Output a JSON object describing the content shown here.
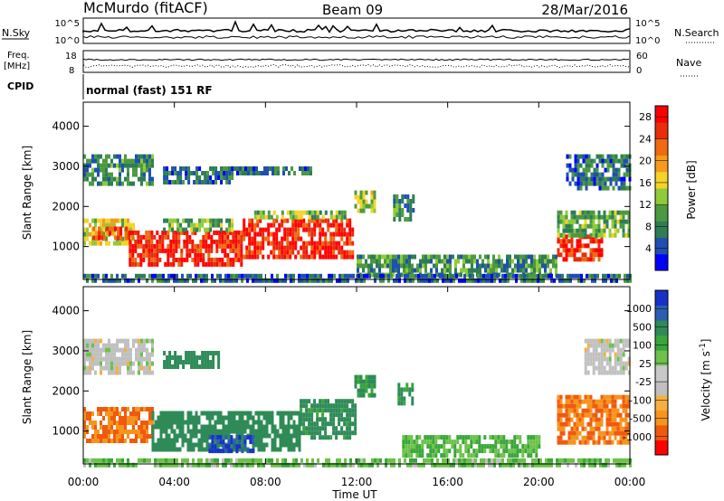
{
  "header": {
    "station": "McMurdo (fitACF)",
    "beam": "Beam 09",
    "date": "28/Mar/2016"
  },
  "noise_panel": {
    "left_label": "N.Sky",
    "right_label": "N.Search",
    "left_ticks": [
      "10^5",
      "10^0"
    ],
    "right_ticks": [
      "10^5",
      "10^0"
    ]
  },
  "freq_panel": {
    "left_label_1": "Freq.",
    "left_label_2": "[MHz]",
    "right_label": "Nave",
    "left_ticks": [
      "18",
      "8"
    ],
    "right_ticks": [
      "60",
      "0"
    ]
  },
  "cpid": {
    "label": "CPID",
    "text": "normal (fast) 151 RF"
  },
  "axes": {
    "ylabel": "Slant Range [km]",
    "xlabel": "Time UT",
    "xticks": [
      "00:00",
      "04:00",
      "08:00",
      "12:00",
      "16:00",
      "20:00",
      "00:00"
    ],
    "yticks": [
      "1000",
      "2000",
      "3000",
      "4000"
    ]
  },
  "colors": {
    "power_scale": [
      "#0000ff",
      "#1f4fb0",
      "#2e7d55",
      "#4c9a3f",
      "#8ecb3a",
      "#f5d32a",
      "#f59c1d",
      "#f06a10",
      "#e82d0c",
      "#ff0000"
    ],
    "velocity_scale": [
      "#ff0000",
      "#f05a0f",
      "#f7941d",
      "#f5b041",
      "#c0c0c0",
      "#c8c8c8",
      "#6cc24a",
      "#3aa639",
      "#2e8b57",
      "#2c5eb0",
      "#1532c8"
    ]
  },
  "chart_data": [
    {
      "type": "heatmap",
      "name": "Power",
      "colorbar_label": "Power [dB]",
      "colorbar_ticks": [
        "4",
        "8",
        "12",
        "16",
        "20",
        "24",
        "28"
      ],
      "clim": [
        0,
        30
      ],
      "xlim_hours": [
        0,
        24
      ],
      "ylim_km": [
        180,
        4600
      ],
      "regions": [
        {
          "t": [
            0.0,
            2.2
          ],
          "r": [
            1100,
            1700
          ],
          "v": 16
        },
        {
          "t": [
            0.4,
            2.0
          ],
          "r": [
            1200,
            1500
          ],
          "v": 24
        },
        {
          "t": [
            2.0,
            7.0
          ],
          "r": [
            600,
            1400
          ],
          "v": 27
        },
        {
          "t": [
            3.5,
            6.5
          ],
          "r": [
            1450,
            1700
          ],
          "v": 11
        },
        {
          "t": [
            7.0,
            11.8
          ],
          "r": [
            700,
            1700
          ],
          "v": 27
        },
        {
          "t": [
            7.5,
            11.5
          ],
          "r": [
            1700,
            1900
          ],
          "v": 13
        },
        {
          "t": [
            0.0,
            3.0
          ],
          "r": [
            2600,
            3300
          ],
          "v": 8
        },
        {
          "t": [
            3.5,
            6.5
          ],
          "r": [
            2600,
            3000
          ],
          "v": 6
        },
        {
          "t": [
            6.0,
            10.0
          ],
          "r": [
            2800,
            3000
          ],
          "v": 7
        },
        {
          "t": [
            11.9,
            12.8
          ],
          "r": [
            1900,
            2400
          ],
          "v": 14
        },
        {
          "t": [
            13.6,
            14.5
          ],
          "r": [
            1700,
            2300
          ],
          "v": 9
        },
        {
          "t": [
            12.0,
            20.8
          ],
          "r": [
            250,
            800
          ],
          "v": 9
        },
        {
          "t": [
            20.8,
            22.8
          ],
          "r": [
            650,
            1300
          ],
          "v": 26
        },
        {
          "t": [
            20.8,
            24.0
          ],
          "r": [
            1300,
            1900
          ],
          "v": 11
        },
        {
          "t": [
            21.2,
            24.0
          ],
          "r": [
            2400,
            3300
          ],
          "v": 7
        },
        {
          "t": [
            0.0,
            24.0
          ],
          "r": [
            190,
            320
          ],
          "v": 6
        }
      ]
    },
    {
      "type": "heatmap",
      "name": "Velocity",
      "colorbar_label": "Velocity [m s^-1]",
      "colorbar_ticks": [
        "1000",
        "500",
        "100",
        "25",
        "-25",
        "-100",
        "-500",
        "-1000"
      ],
      "regions": [
        {
          "t": [
            0.0,
            3.0
          ],
          "r": [
            800,
            1600
          ],
          "v": -300
        },
        {
          "t": [
            3.0,
            9.5
          ],
          "r": [
            500,
            1500
          ],
          "v": 200
        },
        {
          "t": [
            5.5,
            7.5
          ],
          "r": [
            500,
            900
          ],
          "v": 700
        },
        {
          "t": [
            9.5,
            12.0
          ],
          "r": [
            800,
            1800
          ],
          "v": 150
        },
        {
          "t": [
            0.0,
            3.0
          ],
          "r": [
            2500,
            3300
          ],
          "v": 0
        },
        {
          "t": [
            3.5,
            6.0
          ],
          "r": [
            2600,
            3000
          ],
          "v": 200
        },
        {
          "t": [
            11.9,
            12.8
          ],
          "r": [
            1900,
            2400
          ],
          "v": 120
        },
        {
          "t": [
            13.8,
            14.5
          ],
          "r": [
            1700,
            2200
          ],
          "v": 120
        },
        {
          "t": [
            14.0,
            20.0
          ],
          "r": [
            400,
            900
          ],
          "v": 60
        },
        {
          "t": [
            20.8,
            24.0
          ],
          "r": [
            700,
            1900
          ],
          "v": -300
        },
        {
          "t": [
            22.0,
            24.0
          ],
          "r": [
            2500,
            3300
          ],
          "v": 0
        },
        {
          "t": [
            0.0,
            24.0
          ],
          "r": [
            190,
            320
          ],
          "v": 50
        }
      ]
    }
  ]
}
